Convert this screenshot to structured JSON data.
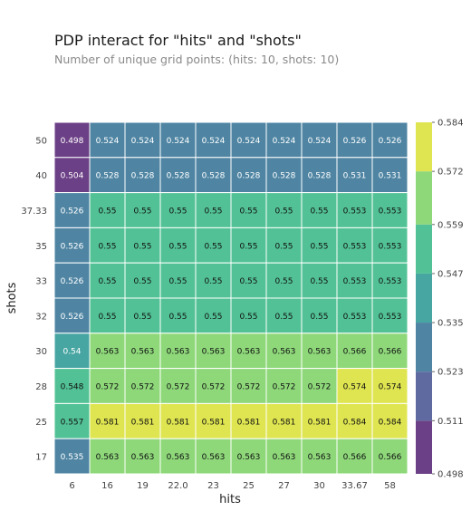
{
  "title": "PDP interact for \"hits\" and \"shots\"",
  "subtitle": "Number of unique grid points: (hits: 10, shots: 10)",
  "chart_data": {
    "type": "heatmap",
    "xlabel": "hits",
    "ylabel": "shots",
    "x_categories": [
      "6",
      "16",
      "19",
      "22.0",
      "23",
      "25",
      "27",
      "30",
      "33.67",
      "58"
    ],
    "y_categories": [
      "50",
      "40",
      "37.33",
      "35",
      "33",
      "32",
      "30",
      "28",
      "25",
      "17"
    ],
    "values": [
      [
        0.498,
        0.524,
        0.524,
        0.524,
        0.524,
        0.524,
        0.524,
        0.524,
        0.526,
        0.526
      ],
      [
        0.504,
        0.528,
        0.528,
        0.528,
        0.528,
        0.528,
        0.528,
        0.528,
        0.531,
        0.531
      ],
      [
        0.526,
        0.55,
        0.55,
        0.55,
        0.55,
        0.55,
        0.55,
        0.55,
        0.553,
        0.553
      ],
      [
        0.526,
        0.55,
        0.55,
        0.55,
        0.55,
        0.55,
        0.55,
        0.55,
        0.553,
        0.553
      ],
      [
        0.526,
        0.55,
        0.55,
        0.55,
        0.55,
        0.55,
        0.55,
        0.55,
        0.553,
        0.553
      ],
      [
        0.526,
        0.55,
        0.55,
        0.55,
        0.55,
        0.55,
        0.55,
        0.55,
        0.553,
        0.553
      ],
      [
        0.54,
        0.563,
        0.563,
        0.563,
        0.563,
        0.563,
        0.563,
        0.563,
        0.566,
        0.566
      ],
      [
        0.548,
        0.572,
        0.572,
        0.572,
        0.572,
        0.572,
        0.572,
        0.572,
        0.574,
        0.574
      ],
      [
        0.557,
        0.581,
        0.581,
        0.581,
        0.581,
        0.581,
        0.581,
        0.581,
        0.584,
        0.584
      ],
      [
        0.535,
        0.563,
        0.563,
        0.563,
        0.563,
        0.563,
        0.563,
        0.563,
        0.566,
        0.566
      ]
    ],
    "colorbar": {
      "ticks": [
        "0.498",
        "0.511",
        "0.523",
        "0.535",
        "0.547",
        "0.559",
        "0.572",
        "0.584"
      ],
      "colors": [
        "#6c4086",
        "#5e6aa0",
        "#4f85a3",
        "#48a6a2",
        "#52c296",
        "#8ed87a",
        "#dfe550"
      ]
    },
    "grid": true
  }
}
